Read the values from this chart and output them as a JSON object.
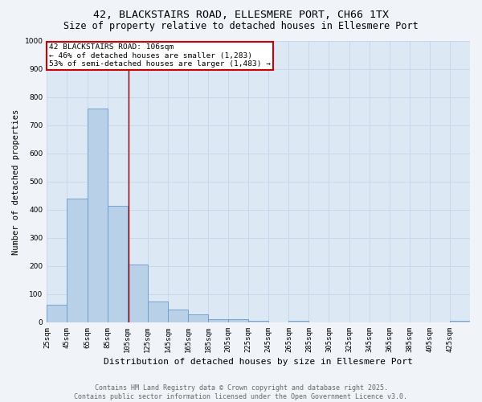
{
  "title1": "42, BLACKSTAIRS ROAD, ELLESMERE PORT, CH66 1TX",
  "title2": "Size of property relative to detached houses in Ellesmere Port",
  "xlabel": "Distribution of detached houses by size in Ellesmere Port",
  "ylabel": "Number of detached properties",
  "bin_edges": [
    25,
    45,
    65,
    85,
    105,
    125,
    145,
    165,
    185,
    205,
    225,
    245,
    265,
    285,
    305,
    325,
    345,
    365,
    385,
    405,
    425,
    445
  ],
  "bar_values": [
    63,
    440,
    760,
    415,
    205,
    75,
    45,
    28,
    12,
    10,
    5,
    0,
    5,
    0,
    0,
    0,
    0,
    0,
    0,
    0,
    5
  ],
  "bar_color": "#b8d0e8",
  "bar_edgecolor": "#6699cc",
  "property_size": 106,
  "vline_color": "#990000",
  "annotation_text": "42 BLACKSTAIRS ROAD: 106sqm\n← 46% of detached houses are smaller (1,283)\n53% of semi-detached houses are larger (1,483) →",
  "annotation_box_color": "#ffffff",
  "annotation_edge_color": "#cc0000",
  "ylim": [
    0,
    1000
  ],
  "yticks": [
    0,
    100,
    200,
    300,
    400,
    500,
    600,
    700,
    800,
    900,
    1000
  ],
  "xtick_labels": [
    "25sqm",
    "45sqm",
    "65sqm",
    "85sqm",
    "105sqm",
    "125sqm",
    "145sqm",
    "165sqm",
    "185sqm",
    "205sqm",
    "225sqm",
    "245sqm",
    "265sqm",
    "285sqm",
    "305sqm",
    "325sqm",
    "345sqm",
    "365sqm",
    "385sqm",
    "405sqm",
    "425sqm"
  ],
  "grid_color": "#c8d8ec",
  "background_color": "#dce8f4",
  "fig_facecolor": "#f0f4f8",
  "footer_text": "Contains HM Land Registry data © Crown copyright and database right 2025.\nContains public sector information licensed under the Open Government Licence v3.0.",
  "title_fontsize": 9.5,
  "subtitle_fontsize": 8.5,
  "ylabel_fontsize": 7.5,
  "xlabel_fontsize": 8,
  "tick_fontsize": 6.5,
  "annotation_fontsize": 6.8,
  "footer_fontsize": 6
}
